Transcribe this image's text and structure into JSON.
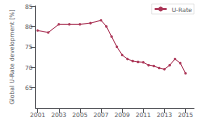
{
  "chart_data": {
    "type": "line",
    "title": "",
    "ylabel": "Global U-Rate development [%]",
    "x": [
      2001,
      2002,
      2003,
      2004,
      2005,
      2006,
      2007,
      2007.5,
      2008,
      2008.5,
      2009,
      2009.5,
      2010,
      2010.5,
      2011,
      2011.5,
      2012,
      2012.5,
      2013,
      2013.5,
      2014,
      2014.5,
      2015
    ],
    "series": [
      {
        "name": "U-Rate",
        "color": "#aa3355",
        "marker": "circle",
        "values": [
          79.0,
          78.5,
          80.5,
          80.5,
          80.5,
          80.8,
          81.5,
          80.0,
          77.5,
          75.0,
          73.0,
          72.0,
          71.5,
          71.3,
          71.2,
          70.5,
          70.3,
          69.8,
          69.5,
          70.5,
          72.0,
          71.0,
          68.5
        ]
      }
    ],
    "xlim": [
      2000.8,
      2015.8
    ],
    "xticks": [
      2001,
      2003,
      2005,
      2007,
      2009,
      2011,
      2013,
      2015
    ],
    "ylim": [
      60,
      85
    ],
    "yticks": [
      65,
      70,
      75,
      80,
      85
    ],
    "grid": false,
    "legend": "upper right"
  }
}
